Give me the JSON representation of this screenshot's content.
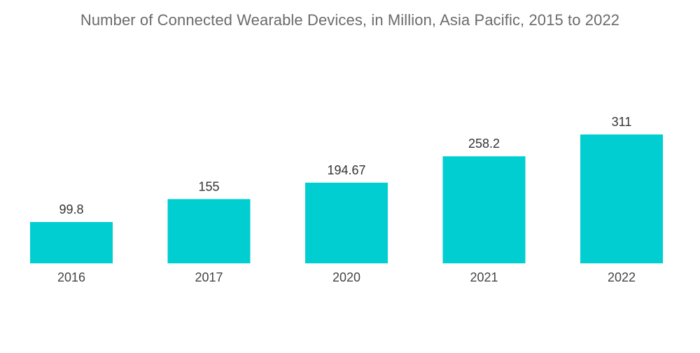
{
  "chart_data": {
    "type": "bar",
    "title": "Number of Connected Wearable Devices, in Million, Asia Pacific, 2015 to 2022",
    "categories": [
      "2016",
      "2017",
      "2020",
      "2021",
      "2022"
    ],
    "values": [
      99.8,
      155,
      194.67,
      258.2,
      311
    ],
    "value_labels": [
      "99.8",
      "155",
      "194.67",
      "258.2",
      "311"
    ],
    "xlabel": "",
    "ylabel": "",
    "ylim": [
      0,
      311
    ],
    "grid": false,
    "legend": "none",
    "bar_color": "#00CED1"
  }
}
